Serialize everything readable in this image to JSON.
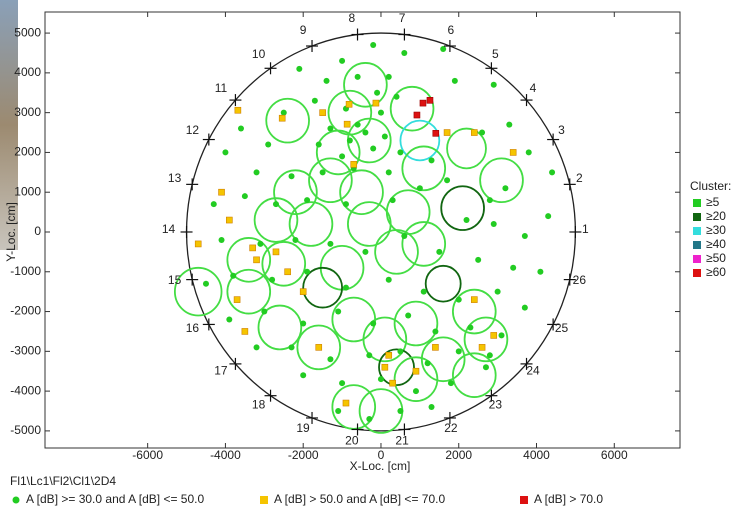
{
  "chart_data": {
    "type": "scatter",
    "caption": "Fl1\\Lc1\\Fl2\\Cl1\\2D4",
    "x_label": "X-Loc. [cm]",
    "y_label": "Y-Loc. [cm]",
    "xlim": [
      -8640,
      7690
    ],
    "ylim": [
      -5430,
      5530
    ],
    "xticks": [
      -6000,
      -4000,
      -2000,
      0,
      2000,
      4000,
      6000
    ],
    "yticks": [
      5000,
      4000,
      3000,
      2000,
      1000,
      0,
      -1000,
      -2000,
      -3000,
      -4000,
      -5000
    ],
    "tank": {
      "radius": 5000,
      "sensors": [
        {
          "label": "1",
          "x": 5000,
          "y": 0
        },
        {
          "label": "2",
          "x": 4855,
          "y": 1197
        },
        {
          "label": "3",
          "x": 4427,
          "y": 2324
        },
        {
          "label": "4",
          "x": 3743,
          "y": 3316
        },
        {
          "label": "5",
          "x": 2840,
          "y": 4115
        },
        {
          "label": "6",
          "x": 1773,
          "y": 4675
        },
        {
          "label": "7",
          "x": 603,
          "y": 4964
        },
        {
          "label": "8",
          "x": -603,
          "y": 4964
        },
        {
          "label": "9",
          "x": -1773,
          "y": 4675
        },
        {
          "label": "10",
          "x": -2840,
          "y": 4115
        },
        {
          "label": "11",
          "x": -3743,
          "y": 3316
        },
        {
          "label": "12",
          "x": -4427,
          "y": 2324
        },
        {
          "label": "13",
          "x": -4855,
          "y": 1197
        },
        {
          "label": "14",
          "x": -5000,
          "y": 0
        },
        {
          "label": "15",
          "x": -4855,
          "y": -1197
        },
        {
          "label": "16",
          "x": -4427,
          "y": -2324
        },
        {
          "label": "17",
          "x": -3743,
          "y": -3316
        },
        {
          "label": "18",
          "x": -2840,
          "y": -4115
        },
        {
          "label": "19",
          "x": -1773,
          "y": -4675
        },
        {
          "label": "20",
          "x": -603,
          "y": -4964
        },
        {
          "label": "21",
          "x": 603,
          "y": -4964
        },
        {
          "label": "22",
          "x": 1773,
          "y": -4675
        },
        {
          "label": "23",
          "x": 2840,
          "y": -4115
        },
        {
          "label": "24",
          "x": 3743,
          "y": -3316
        },
        {
          "label": "25",
          "x": 4427,
          "y": -2324
        },
        {
          "label": "26",
          "x": 4855,
          "y": -1197
        }
      ]
    },
    "clusters": {
      "title": "Cluster:",
      "legend": [
        {
          "label": "≥5",
          "color": "#22cc22"
        },
        {
          "label": "≥20",
          "color": "#116611"
        },
        {
          "label": "≥30",
          "color": "#33dddd"
        },
        {
          "label": "≥40",
          "color": "#227788"
        },
        {
          "label": "≥50",
          "color": "#ee22cc"
        },
        {
          "label": "≥60",
          "color": "#dd1111"
        }
      ],
      "circles": [
        {
          "x": -400,
          "y": 3700,
          "r": 550,
          "color": "#44dd44"
        },
        {
          "x": 800,
          "y": 3100,
          "r": 550,
          "color": "#44dd44"
        },
        {
          "x": -2400,
          "y": 2800,
          "r": 550,
          "color": "#44dd44"
        },
        {
          "x": -800,
          "y": 3000,
          "r": 550,
          "color": "#44dd44"
        },
        {
          "x": -300,
          "y": 2300,
          "r": 550,
          "color": "#44dd44"
        },
        {
          "x": -1100,
          "y": 2000,
          "r": 550,
          "color": "#44dd44"
        },
        {
          "x": 1000,
          "y": 2300,
          "r": 500,
          "color": "#33dddd"
        },
        {
          "x": 2200,
          "y": 2100,
          "r": 500,
          "color": "#44dd44"
        },
        {
          "x": 3100,
          "y": 1300,
          "r": 550,
          "color": "#44dd44"
        },
        {
          "x": 1100,
          "y": 1600,
          "r": 550,
          "color": "#44dd44"
        },
        {
          "x": -2200,
          "y": 1000,
          "r": 550,
          "color": "#44dd44"
        },
        {
          "x": -1300,
          "y": 1300,
          "r": 550,
          "color": "#44dd44"
        },
        {
          "x": -500,
          "y": 1000,
          "r": 550,
          "color": "#44dd44"
        },
        {
          "x": 700,
          "y": 500,
          "r": 550,
          "color": "#44dd44"
        },
        {
          "x": 2100,
          "y": 600,
          "r": 550,
          "color": "#116611"
        },
        {
          "x": -2700,
          "y": 300,
          "r": 550,
          "color": "#44dd44"
        },
        {
          "x": -1800,
          "y": 200,
          "r": 550,
          "color": "#44dd44"
        },
        {
          "x": -300,
          "y": 200,
          "r": 550,
          "color": "#44dd44"
        },
        {
          "x": 1100,
          "y": -300,
          "r": 550,
          "color": "#44dd44"
        },
        {
          "x": -3400,
          "y": -700,
          "r": 550,
          "color": "#44dd44"
        },
        {
          "x": -2500,
          "y": -800,
          "r": 550,
          "color": "#44dd44"
        },
        {
          "x": -1000,
          "y": -900,
          "r": 550,
          "color": "#44dd44"
        },
        {
          "x": 400,
          "y": -500,
          "r": 550,
          "color": "#44dd44"
        },
        {
          "x": 1600,
          "y": -1300,
          "r": 450,
          "color": "#116611"
        },
        {
          "x": -4700,
          "y": -1500,
          "r": 600,
          "color": "#44dd44"
        },
        {
          "x": -3400,
          "y": -1500,
          "r": 550,
          "color": "#44dd44"
        },
        {
          "x": -1500,
          "y": -1400,
          "r": 500,
          "color": "#116611"
        },
        {
          "x": -700,
          "y": -2200,
          "r": 550,
          "color": "#44dd44"
        },
        {
          "x": 900,
          "y": -2300,
          "r": 550,
          "color": "#44dd44"
        },
        {
          "x": 2400,
          "y": -2000,
          "r": 550,
          "color": "#44dd44"
        },
        {
          "x": 2700,
          "y": -2700,
          "r": 550,
          "color": "#44dd44"
        },
        {
          "x": -2600,
          "y": -2400,
          "r": 550,
          "color": "#44dd44"
        },
        {
          "x": -1600,
          "y": -2900,
          "r": 550,
          "color": "#44dd44"
        },
        {
          "x": 100,
          "y": -2700,
          "r": 550,
          "color": "#44dd44"
        },
        {
          "x": 1600,
          "y": -3200,
          "r": 550,
          "color": "#44dd44"
        },
        {
          "x": 2400,
          "y": -3600,
          "r": 550,
          "color": "#44dd44"
        },
        {
          "x": 400,
          "y": -3400,
          "r": 450,
          "color": "#116611"
        },
        {
          "x": -700,
          "y": -4400,
          "r": 550,
          "color": "#44dd44"
        },
        {
          "x": 0,
          "y": -4500,
          "r": 550,
          "color": "#44dd44"
        },
        {
          "x": 900,
          "y": -3700,
          "r": 550,
          "color": "#44dd44"
        }
      ]
    },
    "series": [
      {
        "name": "A [dB] >= 30.0 and A [dB] <= 50.0",
        "color": "#22cc22",
        "marker": "circle",
        "x": [
          -200,
          600,
          1600,
          -1000,
          -2100,
          200,
          -1400,
          -600,
          1900,
          2900,
          -100,
          -1700,
          400,
          -2500,
          -900,
          0,
          -600,
          -1300,
          -400,
          100,
          -800,
          -1600,
          -200,
          -1000,
          500,
          -3600,
          -2900,
          -4000,
          -3200,
          -2300,
          -1500,
          -700,
          200,
          1300,
          1700,
          2600,
          3300,
          3800,
          3200,
          4400,
          2800,
          -4300,
          -3500,
          -2700,
          -1900,
          -900,
          300,
          1000,
          2200,
          2900,
          3700,
          4300,
          -4100,
          -3100,
          -2200,
          -1300,
          -400,
          600,
          1500,
          2500,
          3400,
          4100,
          -4500,
          -3800,
          -2800,
          -1900,
          -900,
          200,
          1100,
          2000,
          3000,
          3700,
          -3900,
          -3000,
          -2000,
          -1100,
          -200,
          700,
          1400,
          2300,
          3100,
          -3200,
          -2300,
          -1300,
          -300,
          500,
          1200,
          2000,
          2800,
          -2000,
          -1000,
          0,
          900,
          1800,
          2700,
          -1100,
          -300,
          500,
          1300
        ],
        "y": [
          4700,
          4500,
          4600,
          4300,
          4100,
          3900,
          3800,
          3900,
          3800,
          3700,
          3500,
          3300,
          3400,
          3000,
          3100,
          3000,
          2700,
          2600,
          2500,
          2400,
          2300,
          2200,
          2100,
          1900,
          2000,
          2600,
          2200,
          2000,
          1500,
          1400,
          1500,
          1600,
          1500,
          1800,
          1300,
          2500,
          2700,
          2000,
          1100,
          1500,
          800,
          700,
          900,
          700,
          800,
          700,
          800,
          1100,
          300,
          200,
          -100,
          400,
          -200,
          -300,
          -200,
          -300,
          -500,
          -100,
          -500,
          -700,
          -900,
          -1000,
          -1300,
          -1100,
          -1200,
          -1000,
          -1400,
          -1200,
          -1500,
          -1700,
          -1500,
          -1900,
          -2200,
          -2000,
          -2300,
          -2000,
          -2300,
          -2100,
          -2500,
          -2400,
          -2600,
          -2900,
          -2900,
          -3200,
          -3100,
          -3000,
          -3300,
          -3000,
          -3100,
          -3600,
          -3800,
          -3700,
          -4000,
          -3800,
          -3400,
          -4500,
          -4700,
          -4500,
          -4400
        ]
      },
      {
        "name": "A [dB] > 50.0 and A [dB] <= 70.0",
        "color": "#f5c400",
        "marker": "square",
        "x": [
          -3680,
          -2540,
          -820,
          -870,
          -130,
          1700,
          2400,
          3400,
          -1500,
          -700,
          -4100,
          -3900,
          -4700,
          -3300,
          -3200,
          -2700,
          -2400,
          -2000,
          -3700,
          -3500,
          2900,
          2600,
          2400,
          200,
          100,
          300,
          -1600,
          -900,
          1400,
          900
        ],
        "y": [
          3060,
          2860,
          3210,
          2710,
          3240,
          2500,
          2500,
          2000,
          3000,
          1700,
          1000,
          300,
          -300,
          -400,
          -700,
          -500,
          -1000,
          -1500,
          -1700,
          -2500,
          -2600,
          -2900,
          -1700,
          -3100,
          -3400,
          -3800,
          -2900,
          -4300,
          -2900,
          -3500
        ]
      },
      {
        "name": "A [dB] > 70.0",
        "color": "#dd1111",
        "marker": "square",
        "x": [
          1260,
          1080,
          925,
          1410
        ],
        "y": [
          3310,
          3240,
          2940,
          2480
        ]
      }
    ]
  }
}
